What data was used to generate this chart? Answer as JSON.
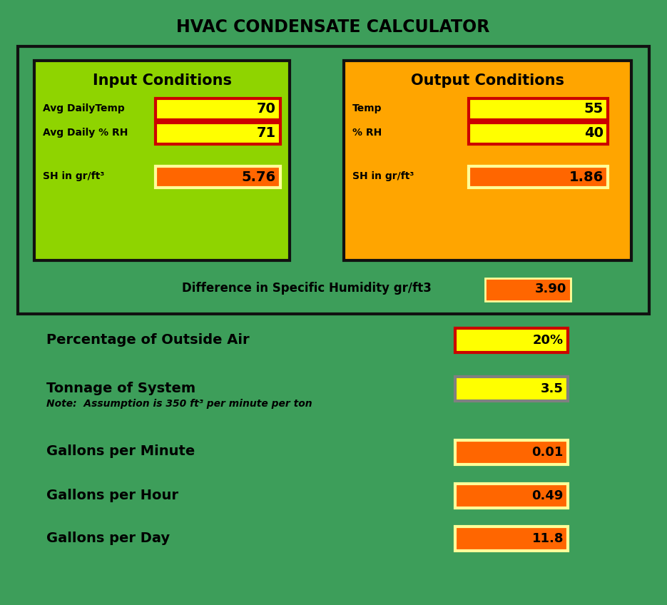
{
  "title": "HVAC CONDENSATE CALCULATOR",
  "bg_color": "#3d9e5a",
  "title_color": "#000000",
  "input_box_bg": "#8fd400",
  "output_box_bg": "#ffa500",
  "input_title": "Input Conditions",
  "output_title": "Output Conditions",
  "input_fields": [
    {
      "label": "Avg DailyTemp",
      "value": "70",
      "box_color": "#ffff00",
      "border_color": "#cc0000"
    },
    {
      "label": "Avg Daily % RH",
      "value": "71",
      "box_color": "#ffff00",
      "border_color": "#cc0000"
    },
    {
      "label": "SH in gr/ft³",
      "value": "5.76",
      "box_color": "#ff6600",
      "border_color": "#ffff99"
    }
  ],
  "output_fields": [
    {
      "label": "Temp",
      "value": "55",
      "box_color": "#ffff00",
      "border_color": "#cc0000"
    },
    {
      "label": "% RH",
      "value": "40",
      "box_color": "#ffff00",
      "border_color": "#cc0000"
    },
    {
      "label": "SH in gr/ft³",
      "value": "1.86",
      "box_color": "#ff6600",
      "border_color": "#ffff99"
    }
  ],
  "diff_label": "Difference in Specific Humidity gr/ft3",
  "diff_value": "3.90",
  "diff_box_color": "#ff6600",
  "diff_box_border": "#ffff99",
  "bottom_rows": [
    {
      "label": "Percentage of Outside Air",
      "value": "20%",
      "box_color": "#ffff00",
      "border_color": "#cc0000",
      "note": ""
    },
    {
      "label": "Tonnage of System",
      "value": "3.5",
      "box_color": "#ffff00",
      "border_color": "#808080",
      "note": "Note:  Assumption is 350 ft³ per minute per ton"
    },
    {
      "label": "Gallons per Minute",
      "value": "0.01",
      "box_color": "#ff6600",
      "border_color": "#ffff99",
      "note": ""
    },
    {
      "label": "Gallons per Hour",
      "value": "0.49",
      "box_color": "#ff6600",
      "border_color": "#ffff99",
      "note": ""
    },
    {
      "label": "Gallons per Day",
      "value": "11.8",
      "box_color": "#ff6600",
      "border_color": "#ffff99",
      "note": ""
    }
  ]
}
